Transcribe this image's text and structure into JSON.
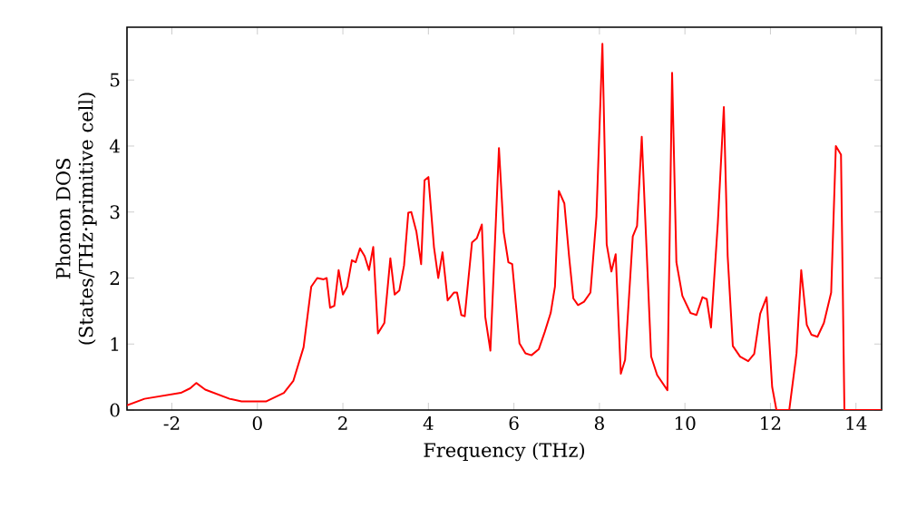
{
  "chart_data": {
    "type": "line",
    "xlabel": "Frequency (THz)",
    "ylabel": "Phonon DOS (States/THz·primitive cell)",
    "xlim": [
      -3.05,
      14.6
    ],
    "ylim": [
      0,
      5.8
    ],
    "xticks": [
      -2,
      0,
      2,
      4,
      6,
      8,
      10,
      12,
      14
    ],
    "yticks": [
      0,
      1,
      2,
      3,
      4,
      5
    ],
    "series": [
      {
        "color": "#ff0000",
        "x": [
          -3.05,
          -2.64,
          -1.79,
          -1.57,
          -1.43,
          -1.22,
          -0.65,
          -0.37,
          0.2,
          0.62,
          0.84,
          1.08,
          1.26,
          1.4,
          1.55,
          1.62,
          1.7,
          1.8,
          1.9,
          2.0,
          2.1,
          2.21,
          2.3,
          2.4,
          2.51,
          2.61,
          2.71,
          2.82,
          2.97,
          3.11,
          3.21,
          3.32,
          3.43,
          3.53,
          3.6,
          3.72,
          3.83,
          3.91,
          4.0,
          4.13,
          4.23,
          4.33,
          4.45,
          4.6,
          4.67,
          4.77,
          4.85,
          5.02,
          5.13,
          5.25,
          5.33,
          5.45,
          5.65,
          5.76,
          5.87,
          5.96,
          6.13,
          6.27,
          6.41,
          6.58,
          6.72,
          6.86,
          6.96,
          7.05,
          7.18,
          7.29,
          7.39,
          7.5,
          7.64,
          7.79,
          7.93,
          8.07,
          8.17,
          8.28,
          8.38,
          8.5,
          8.6,
          8.78,
          8.88,
          8.99,
          9.21,
          9.35,
          9.59,
          9.7,
          9.8,
          9.94,
          10.13,
          10.27,
          10.41,
          10.51,
          10.61,
          10.77,
          10.91,
          11.0,
          11.12,
          11.29,
          11.48,
          11.62,
          11.76,
          11.91,
          12.04,
          12.14,
          12.44,
          12.61,
          12.72,
          12.85,
          12.96,
          13.1,
          13.25,
          13.42,
          13.53,
          13.65,
          13.73,
          14.6
        ],
        "values": [
          0.07,
          0.17,
          0.26,
          0.33,
          0.41,
          0.31,
          0.17,
          0.13,
          0.13,
          0.26,
          0.44,
          0.95,
          1.87,
          2.0,
          1.98,
          2.0,
          1.55,
          1.58,
          2.12,
          1.75,
          1.87,
          2.27,
          2.24,
          2.45,
          2.33,
          2.12,
          2.47,
          1.16,
          1.32,
          2.3,
          1.75,
          1.81,
          2.19,
          2.99,
          3.0,
          2.7,
          2.21,
          3.48,
          3.53,
          2.47,
          2.0,
          2.39,
          1.66,
          1.78,
          1.78,
          1.44,
          1.42,
          2.54,
          2.6,
          2.81,
          1.41,
          0.9,
          3.97,
          2.7,
          2.24,
          2.21,
          1.01,
          0.86,
          0.83,
          0.92,
          1.18,
          1.47,
          1.87,
          3.32,
          3.13,
          2.33,
          1.69,
          1.59,
          1.64,
          1.78,
          2.93,
          5.55,
          2.51,
          2.1,
          2.36,
          0.55,
          0.76,
          2.63,
          2.79,
          4.14,
          0.81,
          0.53,
          0.3,
          5.11,
          2.24,
          1.73,
          1.47,
          1.44,
          1.71,
          1.68,
          1.25,
          2.84,
          4.59,
          2.33,
          0.97,
          0.81,
          0.74,
          0.85,
          1.46,
          1.71,
          0.35,
          0,
          0,
          0.86,
          2.12,
          1.29,
          1.14,
          1.11,
          1.32,
          1.78,
          4.0,
          3.87,
          0,
          0
        ]
      }
    ]
  }
}
